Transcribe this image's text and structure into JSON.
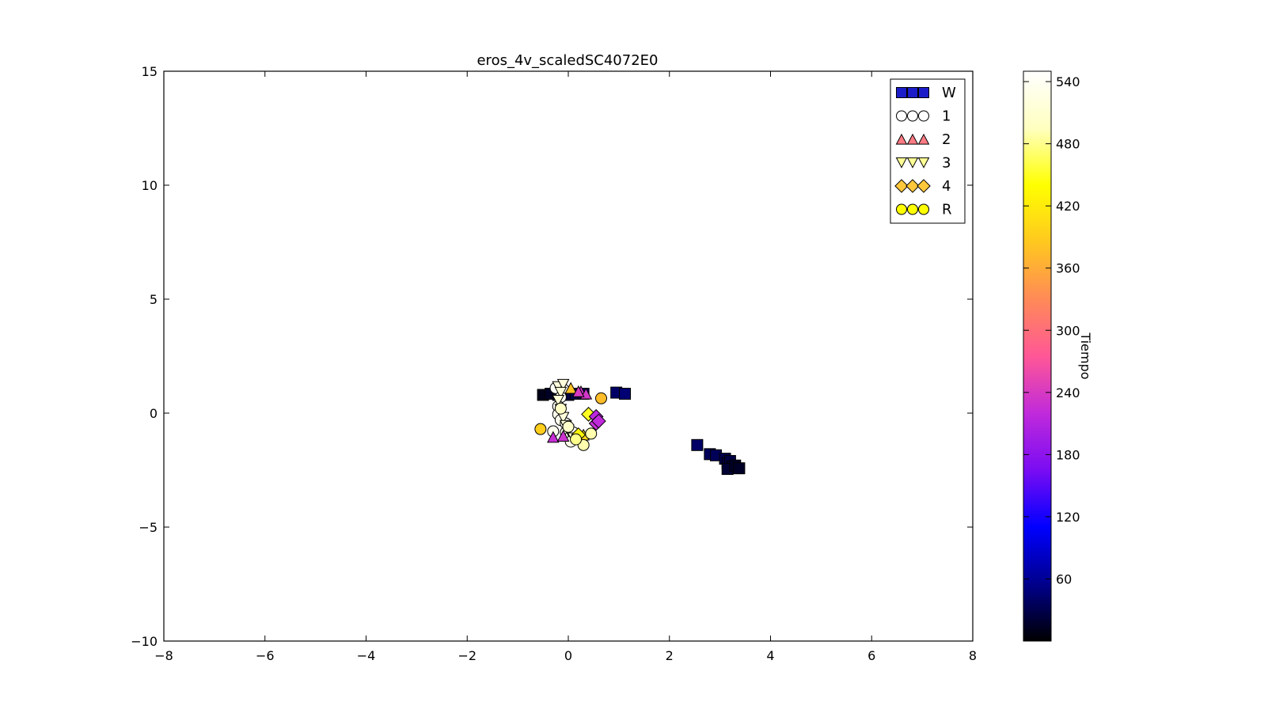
{
  "chart_data": {
    "type": "scatter",
    "title": "eros_4v_scaledSC4072E0",
    "xlabel": "",
    "ylabel": "",
    "xlim": [
      -8,
      8
    ],
    "ylim": [
      -10,
      15
    ],
    "x_ticks": [
      -8,
      -6,
      -4,
      -2,
      0,
      2,
      4,
      6,
      8
    ],
    "x_tick_labels": [
      "−8",
      "−6",
      "−4",
      "−2",
      "0",
      "2",
      "4",
      "6",
      "8"
    ],
    "y_ticks": [
      -10,
      -5,
      0,
      5,
      10,
      15
    ],
    "y_tick_labels": [
      "−10",
      "−5",
      "0",
      "5",
      "10",
      "15"
    ],
    "grid": false,
    "legend_position": "top-right",
    "colorbar": {
      "label": "Tiempo",
      "range": [
        0,
        550
      ],
      "ticks": [
        60,
        120,
        180,
        240,
        300,
        360,
        420,
        480,
        540
      ],
      "tick_labels": [
        "60",
        "120",
        "180",
        "240",
        "300",
        "360",
        "420",
        "480",
        "540"
      ],
      "colormap": "gnuplot2",
      "colormap_stops": [
        "#000000",
        "#00008c",
        "#0000ff",
        "#7a0cf3",
        "#c02adb",
        "#ff5796",
        "#ff8a57",
        "#ffc81f",
        "#ffff00",
        "#ffffc0",
        "#ffffff"
      ]
    },
    "series": [
      {
        "name": "W",
        "marker": "square",
        "legend_color": "#1c1cc8",
        "points": [
          {
            "x": -0.5,
            "y": 0.8,
            "t": 10
          },
          {
            "x": -0.35,
            "y": 0.85,
            "t": 15
          },
          {
            "x": -0.2,
            "y": 0.8,
            "t": 20
          },
          {
            "x": 0.0,
            "y": 0.8,
            "t": 25
          },
          {
            "x": 0.15,
            "y": 0.85,
            "t": 30
          },
          {
            "x": 0.3,
            "y": 0.85,
            "t": 35
          },
          {
            "x": 0.95,
            "y": 0.9,
            "t": 40
          },
          {
            "x": 1.12,
            "y": 0.85,
            "t": 45
          },
          {
            "x": 2.55,
            "y": -1.4,
            "t": 40
          },
          {
            "x": 2.8,
            "y": -1.8,
            "t": 35
          },
          {
            "x": 2.92,
            "y": -1.85,
            "t": 35
          },
          {
            "x": 3.1,
            "y": -2.0,
            "t": 30
          },
          {
            "x": 3.15,
            "y": -2.2,
            "t": 25
          },
          {
            "x": 3.2,
            "y": -2.1,
            "t": 25
          },
          {
            "x": 3.25,
            "y": -2.35,
            "t": 20
          },
          {
            "x": 3.15,
            "y": -2.45,
            "t": 20
          },
          {
            "x": 3.3,
            "y": -2.3,
            "t": 15
          },
          {
            "x": 3.38,
            "y": -2.42,
            "t": 15
          }
        ]
      },
      {
        "name": "1",
        "marker": "circle",
        "legend_color": "#ffffff",
        "points": [
          {
            "x": -0.25,
            "y": 1.1,
            "t": 545
          },
          {
            "x": -0.1,
            "y": 1.05,
            "t": 545
          },
          {
            "x": -0.15,
            "y": 0.7,
            "t": 540
          },
          {
            "x": -0.2,
            "y": 0.3,
            "t": 540
          },
          {
            "x": -0.2,
            "y": -0.05,
            "t": 535
          },
          {
            "x": -0.15,
            "y": -0.3,
            "t": 535
          },
          {
            "x": -0.05,
            "y": -0.45,
            "t": 540
          },
          {
            "x": 0.0,
            "y": -0.65,
            "t": 540
          },
          {
            "x": -0.05,
            "y": -0.85,
            "t": 535
          },
          {
            "x": 0.05,
            "y": -1.0,
            "t": 530
          },
          {
            "x": -0.3,
            "y": -0.8,
            "t": 535
          },
          {
            "x": 0.05,
            "y": -1.25,
            "t": 530
          },
          {
            "x": 0.1,
            "y": -0.85,
            "t": 540
          }
        ]
      },
      {
        "name": "2",
        "marker": "triangle-up",
        "legend_color": "#ff7b84",
        "points": [
          {
            "x": 0.05,
            "y": 1.1,
            "t": 380
          },
          {
            "x": 0.25,
            "y": 0.95,
            "t": 230
          },
          {
            "x": 0.35,
            "y": 0.85,
            "t": 235
          },
          {
            "x": 0.2,
            "y": 0.95,
            "t": 240
          },
          {
            "x": 0.3,
            "y": -0.95,
            "t": 400
          },
          {
            "x": -0.3,
            "y": -1.05,
            "t": 225
          },
          {
            "x": -0.1,
            "y": -1.0,
            "t": 230
          }
        ]
      },
      {
        "name": "3",
        "marker": "triangle-down",
        "legend_color": "#ffff96",
        "points": [
          {
            "x": -0.2,
            "y": 1.15,
            "t": 520
          },
          {
            "x": -0.1,
            "y": 1.25,
            "t": 520
          },
          {
            "x": -0.15,
            "y": 0.9,
            "t": 515
          },
          {
            "x": -0.2,
            "y": 0.55,
            "t": 515
          },
          {
            "x": -0.15,
            "y": 0.15,
            "t": 520
          },
          {
            "x": -0.1,
            "y": -0.2,
            "t": 520
          },
          {
            "x": -0.05,
            "y": -0.55,
            "t": 515
          },
          {
            "x": 0.0,
            "y": -0.75,
            "t": 520
          },
          {
            "x": 0.1,
            "y": -1.1,
            "t": 515
          }
        ]
      },
      {
        "name": "4",
        "marker": "diamond",
        "legend_color": "#ffc83c",
        "points": [
          {
            "x": 0.4,
            "y": -0.05,
            "t": 450
          },
          {
            "x": 0.55,
            "y": -0.15,
            "t": 215
          },
          {
            "x": 0.55,
            "y": -0.45,
            "t": 225
          },
          {
            "x": 0.6,
            "y": -0.35,
            "t": 220
          },
          {
            "x": 0.2,
            "y": -0.95,
            "t": 430
          }
        ]
      },
      {
        "name": "R",
        "marker": "circle",
        "legend_color": "#ffff00",
        "points": [
          {
            "x": 0.65,
            "y": 0.65,
            "t": 375
          },
          {
            "x": -0.55,
            "y": -0.7,
            "t": 390
          },
          {
            "x": 0.45,
            "y": -0.9,
            "t": 490
          },
          {
            "x": 0.3,
            "y": -1.4,
            "t": 490
          },
          {
            "x": 0.15,
            "y": -1.15,
            "t": 480
          },
          {
            "x": 0.0,
            "y": -0.6,
            "t": 505
          },
          {
            "x": -0.15,
            "y": 0.2,
            "t": 500
          }
        ]
      }
    ]
  }
}
